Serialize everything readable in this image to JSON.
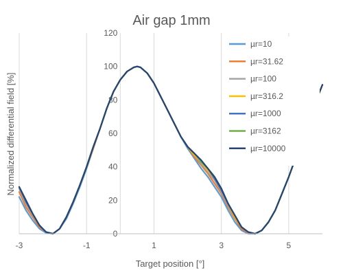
{
  "chart_data": {
    "type": "line",
    "title": "Air gap 1mm",
    "xlabel": "Target position [°]",
    "ylabel": "Normalized differential field [%]",
    "xlim": [
      -3,
      6
    ],
    "ylim": [
      0,
      120
    ],
    "xticks": [
      -3,
      -1,
      1,
      3,
      5
    ],
    "yticks": [
      0,
      20,
      40,
      60,
      80,
      100,
      120
    ],
    "grid": "vertical",
    "legend_position": "right",
    "x": [
      -3,
      -2.8,
      -2.6,
      -2.4,
      -2.2,
      -2,
      -1.8,
      -1.6,
      -1.4,
      -1.2,
      -1,
      -0.8,
      -0.6,
      -0.4,
      -0.2,
      0,
      0.2,
      0.4,
      0.5,
      0.6,
      0.8,
      1,
      1.2,
      1.4,
      1.6,
      1.8,
      2,
      2.2,
      2.4,
      2.6,
      2.8,
      3,
      3.2,
      3.4,
      3.6,
      3.8,
      4,
      4.2,
      4.4,
      4.6,
      4.8,
      5,
      5.2,
      5.4,
      5.6,
      5.8,
      6
    ],
    "series": [
      {
        "name": "µr=10",
        "color": "#5b9bd5",
        "values": [
          22,
          14,
          8,
          3,
          0.5,
          0,
          3,
          9,
          18,
          28,
          39,
          51,
          63,
          75,
          85,
          92,
          97,
          99.5,
          100,
          99.5,
          96,
          90,
          82,
          74,
          66,
          58,
          51,
          45,
          39,
          34,
          28,
          22,
          14,
          7,
          2,
          0,
          0,
          2,
          7,
          14,
          24,
          34,
          45,
          56,
          67,
          79,
          89
        ]
      },
      {
        "name": "µr=31.62",
        "color": "#ed7d31",
        "values": [
          25,
          16,
          10,
          4,
          1,
          0,
          3,
          10,
          19,
          29,
          40,
          51,
          63,
          75,
          85,
          92,
          97,
          99.5,
          100,
          99.5,
          96,
          90,
          82,
          74,
          66,
          58,
          52,
          46,
          41,
          36,
          30,
          24,
          16,
          9,
          3,
          0.5,
          0,
          2,
          7,
          14,
          24,
          34,
          45,
          56,
          67,
          79,
          89
        ]
      },
      {
        "name": "µr=100",
        "color": "#a5a5a5",
        "values": [
          27,
          18,
          11,
          5,
          1,
          0,
          3,
          10,
          19,
          29,
          40,
          52,
          63,
          75,
          85,
          92,
          97,
          99.5,
          100,
          99.5,
          96,
          90,
          82,
          74,
          66,
          58,
          52,
          47,
          42,
          37,
          32,
          25,
          17,
          10,
          4,
          1,
          0,
          2,
          7,
          14,
          24,
          34,
          45,
          56,
          67,
          79,
          89
        ]
      },
      {
        "name": "µr=316.2",
        "color": "#ffc000",
        "values": [
          28,
          19,
          12,
          5,
          1,
          0,
          3,
          10,
          19,
          29,
          40,
          52,
          63,
          75,
          85,
          92,
          97,
          99.5,
          100,
          99.5,
          96,
          90,
          82,
          74,
          66,
          58,
          52,
          47,
          43,
          38,
          33,
          26,
          18,
          10,
          4,
          1,
          0,
          2,
          7,
          14,
          24,
          34,
          45,
          56,
          67,
          79,
          89
        ]
      },
      {
        "name": "µr=1000",
        "color": "#4472c4",
        "values": [
          28,
          19,
          12,
          5,
          1,
          0,
          3,
          10,
          19,
          29,
          40,
          52,
          63,
          75,
          85,
          92,
          97,
          99.5,
          100,
          99.5,
          96,
          90,
          82,
          74,
          66,
          58,
          52,
          48,
          43,
          39,
          33,
          26,
          18,
          11,
          4,
          1,
          0,
          2,
          7,
          14,
          24,
          34,
          45,
          56,
          67,
          79,
          89
        ]
      },
      {
        "name": "µr=3162",
        "color": "#70ad47",
        "values": [
          28,
          20,
          12,
          5,
          1,
          0,
          3,
          10,
          19,
          29,
          40,
          52,
          63,
          75,
          85,
          92,
          97,
          99.5,
          100,
          99.5,
          96,
          90,
          82,
          74,
          66,
          58,
          52,
          48,
          43,
          39,
          34,
          27,
          18,
          11,
          4,
          1,
          0,
          2,
          7,
          14,
          24,
          34,
          45,
          56,
          67,
          79,
          89
        ]
      },
      {
        "name": "µr=10000",
        "color": "#264478",
        "values": [
          28,
          20,
          12,
          5,
          1,
          0,
          3,
          10,
          19,
          29,
          40,
          52,
          63,
          75,
          85,
          92,
          97,
          99.5,
          100,
          99.5,
          96,
          90,
          82,
          74,
          66,
          58,
          52,
          48,
          44,
          39,
          34,
          27,
          18,
          11,
          4,
          1,
          0,
          2,
          7,
          14,
          24,
          34,
          45,
          56,
          67,
          79,
          89
        ]
      }
    ]
  }
}
